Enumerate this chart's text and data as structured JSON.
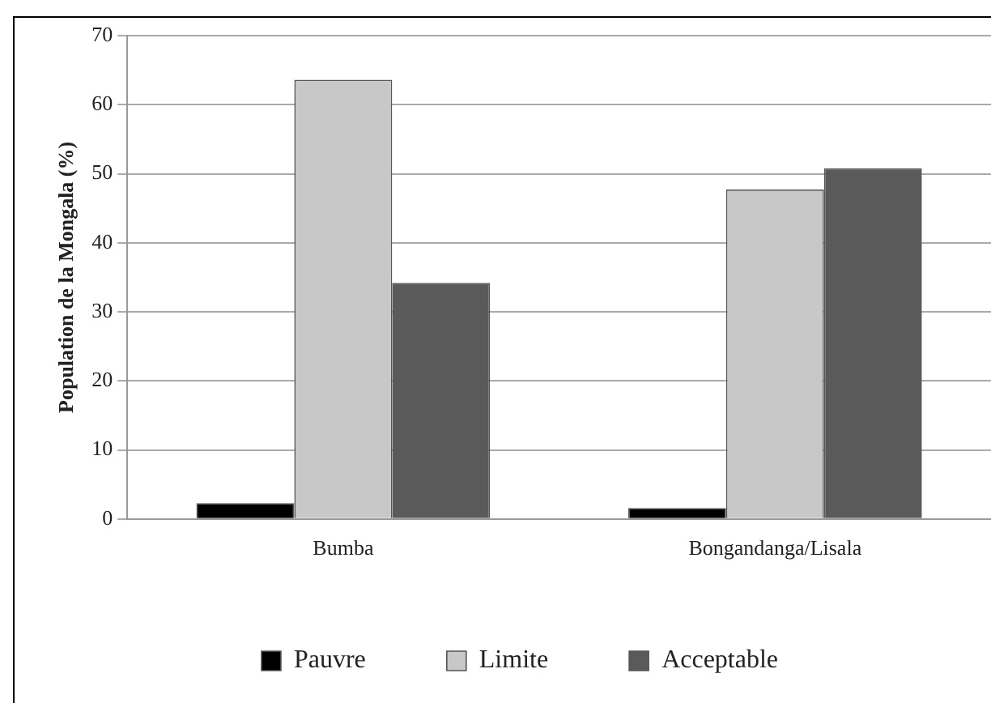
{
  "chart_data": {
    "type": "bar",
    "ylabel": "Population de la Mongala (%)",
    "categories": [
      "Bumba",
      "Bongandanga/Lisala"
    ],
    "series": [
      {
        "name": "Pauvre",
        "color": "#000000",
        "values": [
          2.3,
          1.6
        ]
      },
      {
        "name": "Limite",
        "color": "#c8c8c8",
        "values": [
          63.6,
          47.7
        ]
      },
      {
        "name": "Acceptable",
        "color": "#5a5a5a",
        "values": [
          34.2,
          50.8
        ]
      }
    ],
    "ylim": [
      0,
      70
    ],
    "yticks": [
      0,
      10,
      20,
      30,
      40,
      50,
      60,
      70
    ],
    "grid": "y",
    "legend": "bottom"
  }
}
